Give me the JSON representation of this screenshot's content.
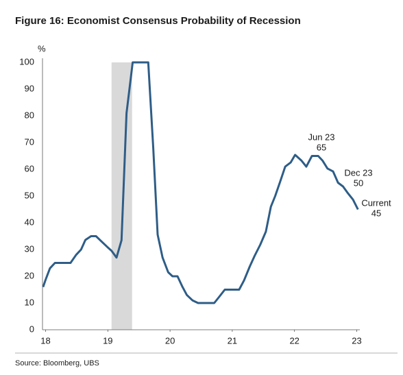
{
  "chart_data": {
    "type": "line",
    "title": "Figure 16: Economist Consensus Probability of Recession",
    "y_label": "%",
    "source": "Source: Bloomberg, UBS",
    "xlim": [
      17.95,
      23.05
    ],
    "xticks": [
      18,
      19,
      20,
      21,
      22,
      23
    ],
    "ylim": [
      0,
      100
    ],
    "yticks": [
      0,
      10,
      20,
      30,
      40,
      50,
      60,
      70,
      80,
      90,
      100
    ],
    "grid": false,
    "shade": [
      19.06,
      19.39
    ],
    "shade_color": "#d9d9d9",
    "annotations": [
      {
        "label": "Jun 23",
        "value": 65
      },
      {
        "label": "Dec 23",
        "value": 50
      },
      {
        "label": "Current",
        "value": 45
      }
    ],
    "series": [
      {
        "name": "Probability of recession",
        "color": "#2e5d87",
        "x": [
          17.96,
          18.0,
          18.07,
          18.15,
          18.26,
          18.4,
          18.49,
          18.57,
          18.64,
          18.73,
          18.81,
          18.9,
          18.99,
          19.06,
          19.14,
          19.22,
          19.3,
          19.4,
          19.65,
          19.73,
          19.8,
          19.88,
          19.97,
          20.04,
          20.12,
          20.2,
          20.27,
          20.36,
          20.45,
          20.57,
          20.71,
          20.79,
          20.88,
          21.11,
          21.19,
          21.28,
          21.36,
          21.45,
          21.54,
          21.62,
          21.69,
          21.77,
          21.85,
          21.94,
          22.01,
          22.11,
          22.19,
          22.28,
          22.38,
          22.45,
          22.53,
          22.62,
          22.7,
          22.78,
          22.86,
          22.94,
          23.02
        ],
        "values": [
          16,
          18.7,
          23,
          25,
          25,
          25,
          28,
          30,
          33.6,
          35,
          35,
          33,
          31,
          29.5,
          27,
          33.5,
          81,
          100,
          100,
          68,
          35.6,
          27,
          21.5,
          20,
          20,
          16,
          13,
          11,
          10,
          10,
          10,
          12.3,
          15,
          15,
          18.5,
          23.6,
          27.7,
          31.8,
          36.7,
          46,
          50,
          55.4,
          61,
          62.6,
          65.4,
          63.3,
          61,
          65,
          65,
          63.3,
          60.3,
          59.2,
          55,
          53.6,
          51,
          48.7,
          45
        ]
      }
    ]
  }
}
